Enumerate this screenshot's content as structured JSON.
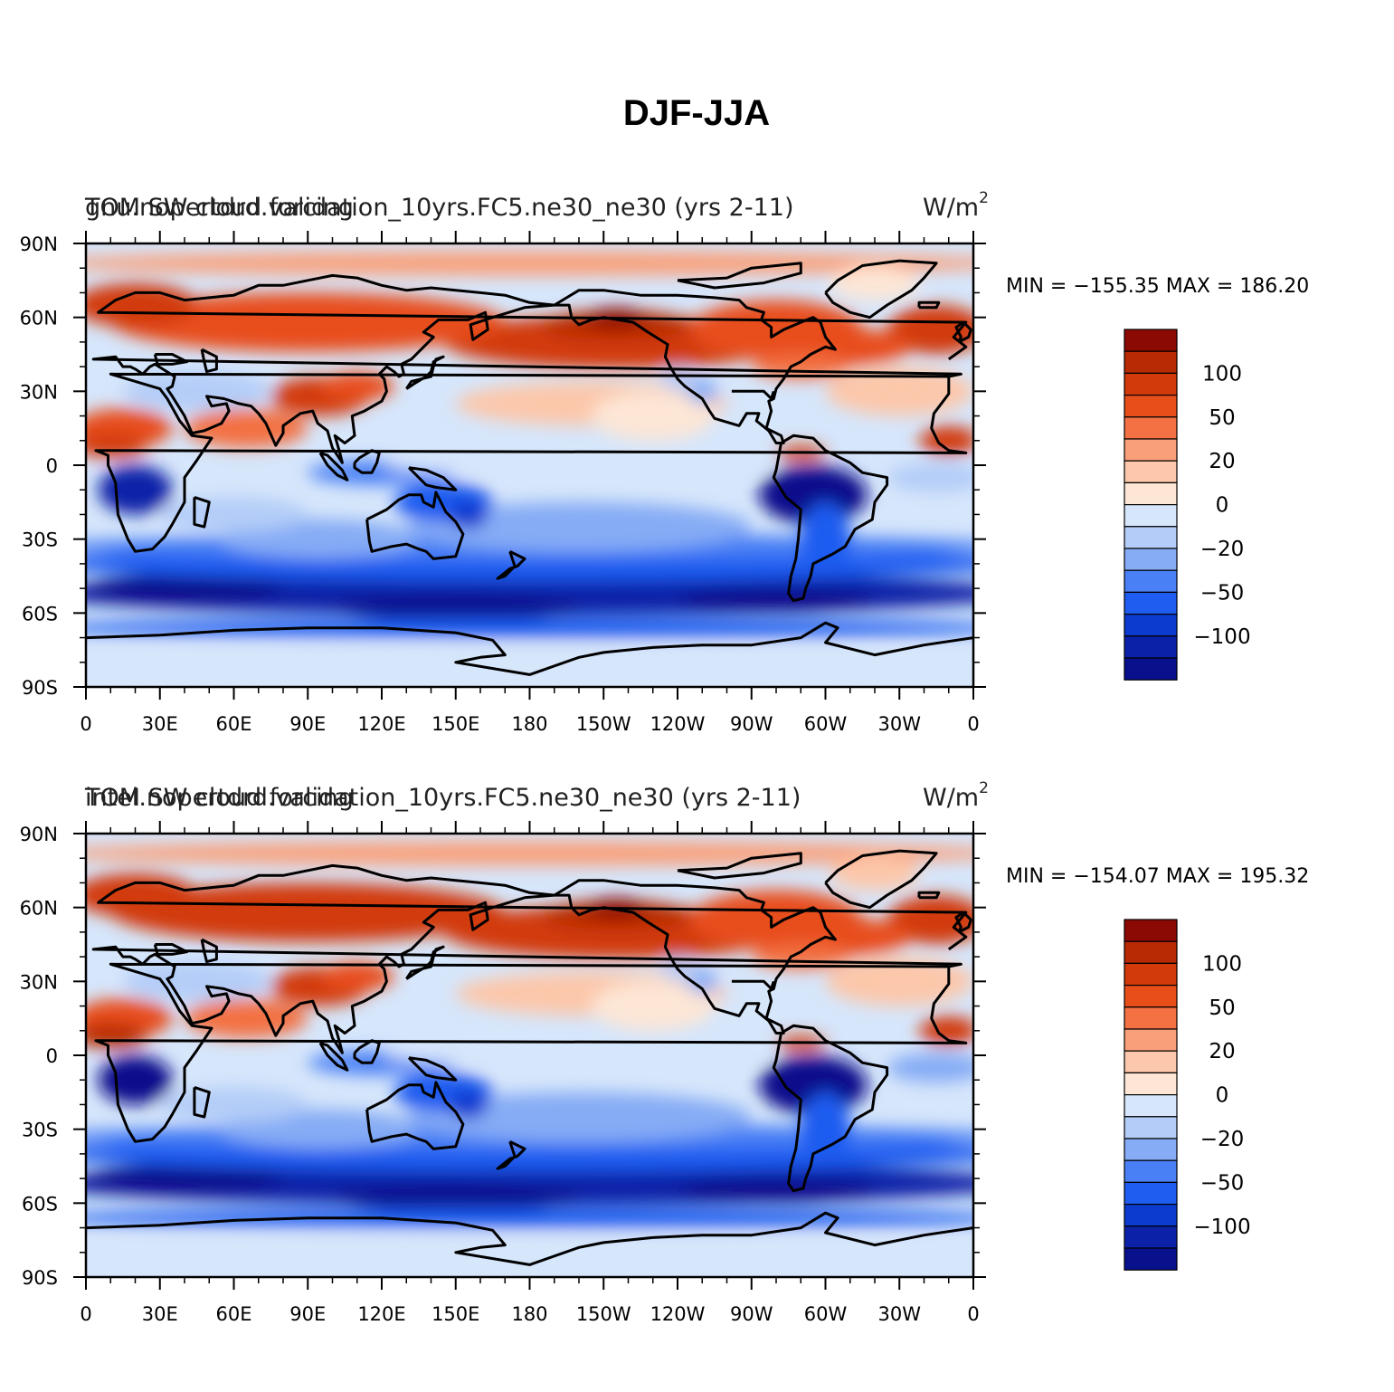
{
  "figure_title": "DJF-JJA",
  "colors": {
    "levels": [
      "#08108c",
      "#0b22a8",
      "#0c3bd0",
      "#1f5cf0",
      "#4a80f5",
      "#86acf5",
      "#b4cdf8",
      "#d6e6fb",
      "#fde6d5",
      "#fcc7aa",
      "#f9a07a",
      "#f37143",
      "#e84e1a",
      "#d23a0c",
      "#b82a04",
      "#8c0a04"
    ],
    "ocean_base": "#d6e6fb",
    "coast": "#000000"
  },
  "chart_data": [
    {
      "type": "heatmap",
      "title_left_variable": "TOM SW cloud forcing",
      "title_left_case": "gnu.nopertdrd.validation_10yrs.FC5.ne30_ne30 (yrs 2-11)",
      "units": "W/m",
      "units_superscript": "2",
      "x_tick_labels": [
        "0",
        "30E",
        "60E",
        "90E",
        "120E",
        "150E",
        "180",
        "150W",
        "120W",
        "90W",
        "60W",
        "30W",
        "0"
      ],
      "y_tick_labels": [
        "90N",
        "60N",
        "30N",
        "0",
        "30S",
        "60S",
        "90S"
      ],
      "min_label": "MIN",
      "min_value": "−155.35",
      "max_label": "MAX",
      "max_value": "186.20",
      "colorbar_labels": [
        "100",
        "50",
        "20",
        "0",
        "−20",
        "−50",
        "−100"
      ],
      "field_signature": "gnu"
    },
    {
      "type": "heatmap",
      "title_left_variable": "TOM SW cloud forcing",
      "title_left_case": "intel.nopertdrd.validation_10yrs.FC5.ne30_ne30 (yrs 2-11)",
      "units": "W/m",
      "units_superscript": "2",
      "x_tick_labels": [
        "0",
        "30E",
        "60E",
        "90E",
        "120E",
        "150E",
        "180",
        "150W",
        "120W",
        "90W",
        "60W",
        "30W",
        "0"
      ],
      "y_tick_labels": [
        "90N",
        "60N",
        "30N",
        "0",
        "30S",
        "60S",
        "90S"
      ],
      "min_label": "MIN",
      "min_value": "−154.07",
      "max_label": "MAX",
      "max_value": "195.32",
      "colorbar_labels": [
        "100",
        "50",
        "20",
        "0",
        "−20",
        "−50",
        "−100"
      ],
      "field_signature": "intel"
    }
  ]
}
